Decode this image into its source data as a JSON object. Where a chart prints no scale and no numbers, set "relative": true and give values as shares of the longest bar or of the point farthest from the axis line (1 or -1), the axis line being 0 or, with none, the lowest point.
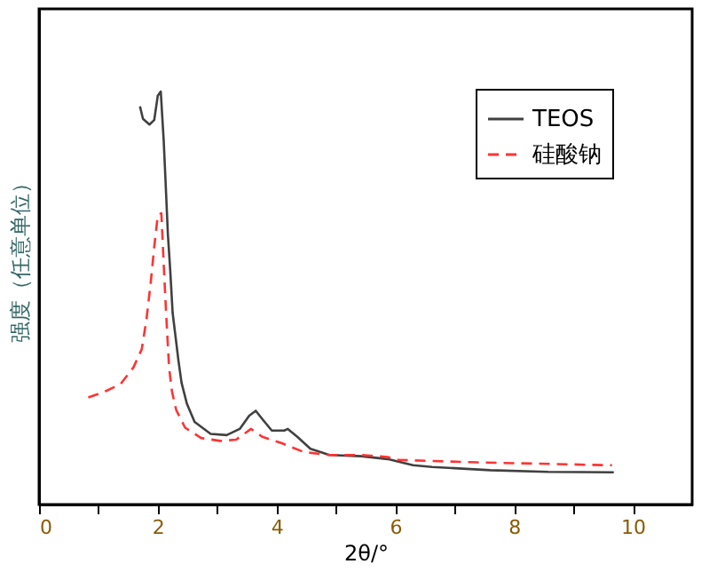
{
  "chart_data": {
    "type": "line",
    "relative": true,
    "xlabel": "2θ/°",
    "ylabel": "强度（任意单位）",
    "xlim": [
      0,
      11
    ],
    "xticks": [
      0,
      {
        "value": 1,
        "label": null
      },
      2,
      {
        "value": 3,
        "label": null
      },
      4,
      {
        "value": 5,
        "label": null
      },
      6,
      {
        "value": 7,
        "label": null
      },
      8,
      {
        "value": 9,
        "label": null
      },
      10
    ],
    "legend": "top right",
    "grid": false,
    "series": [
      {
        "name": "TEOS",
        "color": "#404040",
        "line_style": "solid",
        "x": [
          1.7,
          1.75,
          1.86,
          1.94,
          2.0,
          2.05,
          2.1,
          2.13,
          2.17,
          2.21,
          2.25,
          2.3,
          2.35,
          2.4,
          2.49,
          2.62,
          2.89,
          3.16,
          3.38,
          3.54,
          3.65,
          3.76,
          3.92,
          4.13,
          4.19,
          4.35,
          4.57,
          4.89,
          5.43,
          5.87,
          6.3,
          6.62,
          7.6,
          8.57,
          9.68
        ],
        "values": [
          0.964,
          0.934,
          0.92,
          0.931,
          0.99,
          1.0,
          0.88,
          0.785,
          0.654,
          0.566,
          0.464,
          0.405,
          0.346,
          0.295,
          0.244,
          0.2,
          0.171,
          0.168,
          0.183,
          0.215,
          0.227,
          0.207,
          0.179,
          0.179,
          0.183,
          0.164,
          0.135,
          0.12,
          0.117,
          0.11,
          0.095,
          0.091,
          0.083,
          0.079,
          0.078
        ]
      },
      {
        "name": "硅酸钠",
        "color": "#ff3333",
        "line_style": "dashed",
        "x": [
          0.83,
          1.1,
          1.37,
          1.59,
          1.73,
          1.81,
          1.88,
          1.94,
          2.0,
          2.06,
          2.1,
          2.14,
          2.19,
          2.24,
          2.31,
          2.46,
          2.73,
          3.05,
          3.32,
          3.57,
          3.76,
          4.08,
          4.46,
          4.89,
          5.43,
          5.87,
          6.03,
          7.38,
          9.65
        ],
        "values": [
          0.259,
          0.273,
          0.291,
          0.332,
          0.376,
          0.449,
          0.536,
          0.624,
          0.7,
          0.705,
          0.58,
          0.464,
          0.332,
          0.273,
          0.229,
          0.186,
          0.161,
          0.154,
          0.157,
          0.183,
          0.164,
          0.149,
          0.127,
          0.12,
          0.12,
          0.115,
          0.108,
          0.102,
          0.095
        ]
      }
    ]
  }
}
